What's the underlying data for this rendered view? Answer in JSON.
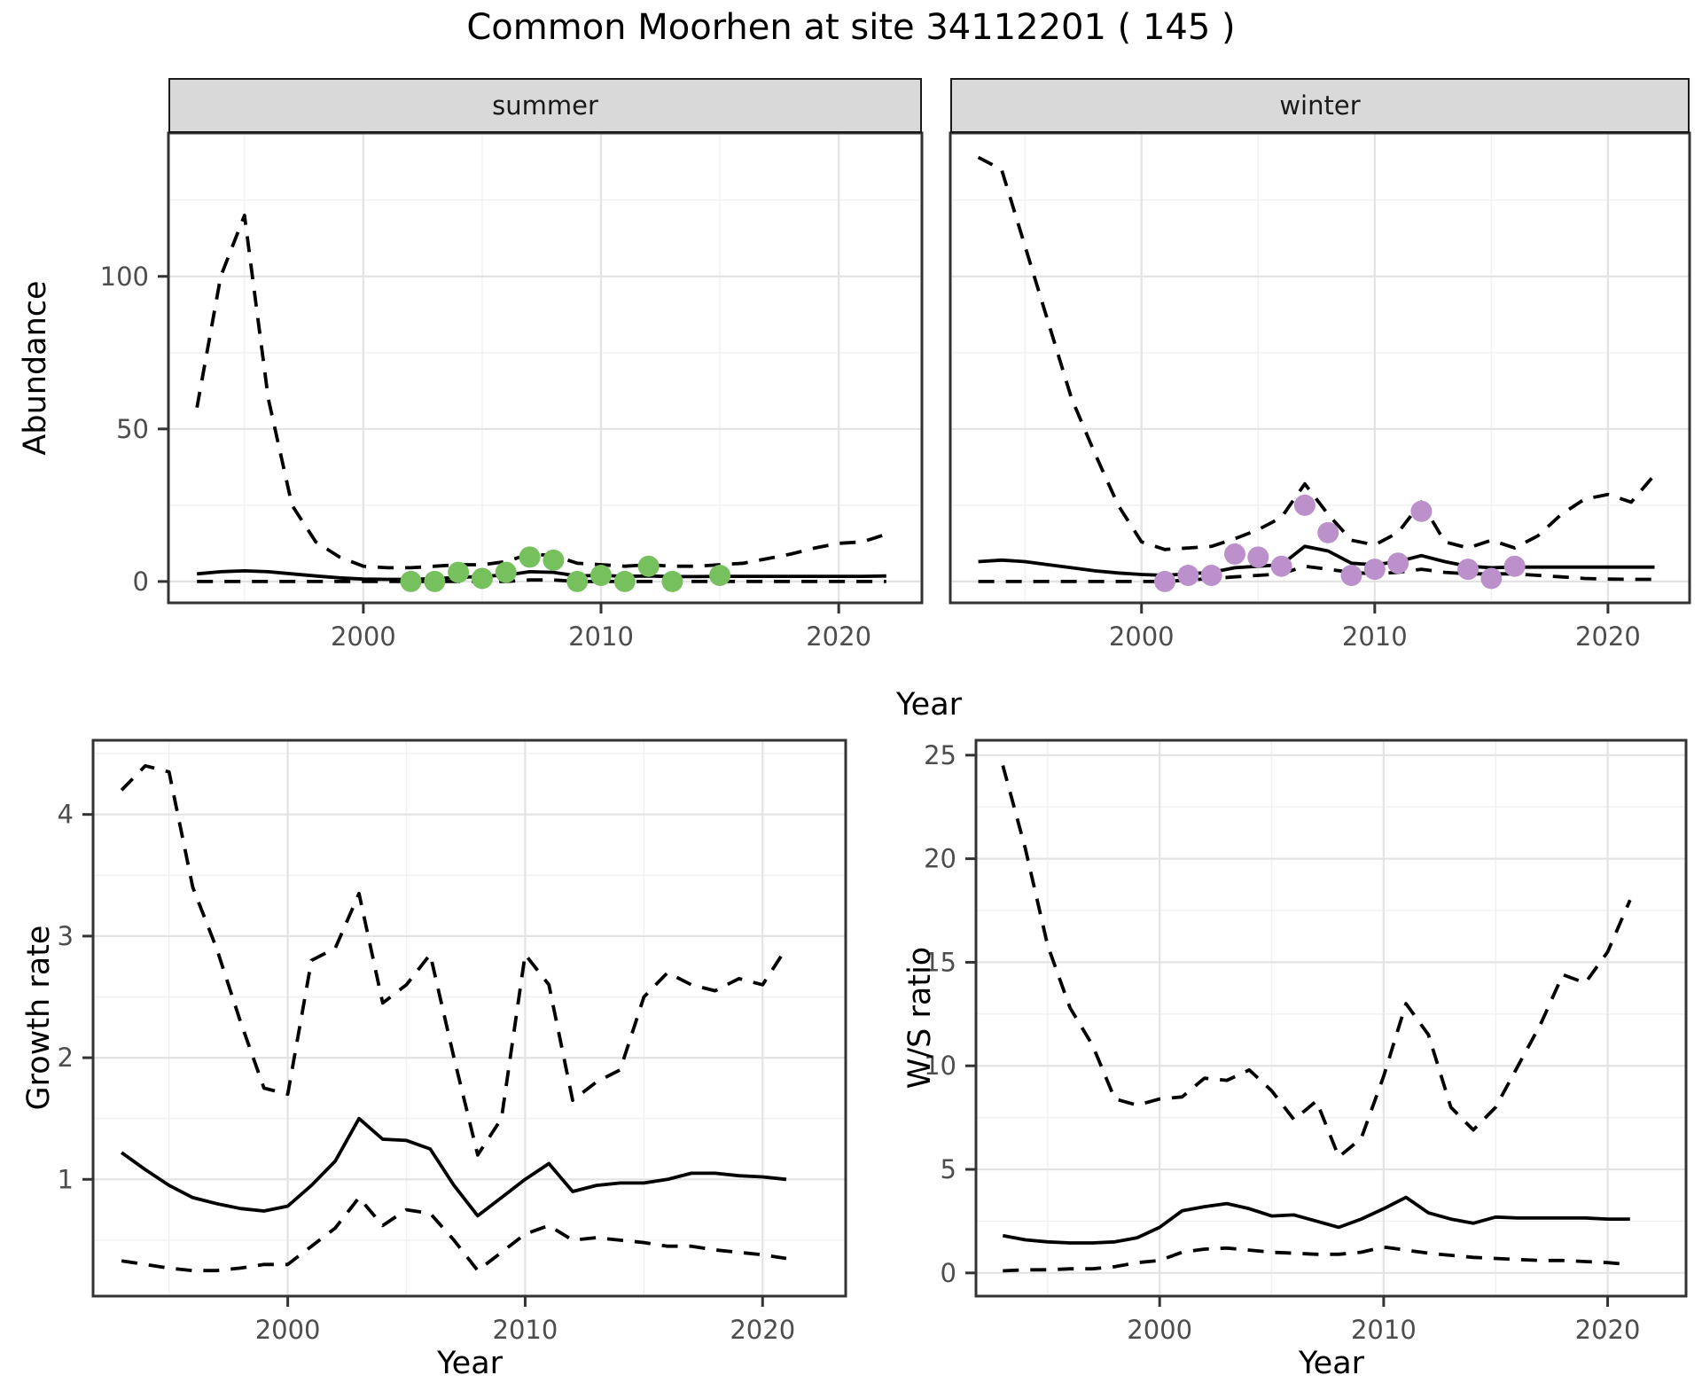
{
  "title": "Common Moorhen at site 34112201 ( 145 )",
  "labels": {
    "y_top": "Abundance",
    "x_top": "Year",
    "y_growth": "Growth rate",
    "x_growth": "Year",
    "y_ws": "W/S ratio",
    "x_ws": "Year"
  },
  "facets": [
    {
      "label": "summer"
    },
    {
      "label": "winter"
    }
  ],
  "colors": {
    "summer_point": "#76C05D",
    "winter_point": "#BB90CB",
    "line": "#000000",
    "strip_bg": "#d9d9d9",
    "panel_border": "#333333",
    "grid_major": "#e3e3e3",
    "grid_minor": "#f0f0f0",
    "tick_text": "#4d4d4d"
  },
  "chart_data": [
    {
      "id": "abundance-summer",
      "type": "line",
      "facet": "summer",
      "ylabel": "Abundance",
      "xlabel": "Year",
      "xlim": [
        1991.8,
        2023.5
      ],
      "ylim": [
        -7,
        147
      ],
      "x_ticks": [
        2000,
        2010,
        2020
      ],
      "x_tick_labels": [
        "2000",
        "2010",
        "2020"
      ],
      "x_minor": [
        1995,
        2005,
        2015
      ],
      "y_ticks": [
        0,
        50,
        100
      ],
      "y_tick_labels": [
        "0",
        "50",
        "100"
      ],
      "y_minor": [
        25,
        75,
        125
      ],
      "x": [
        1993,
        1994,
        1995,
        1996,
        1997,
        1998,
        1999,
        2000,
        2001,
        2002,
        2003,
        2004,
        2005,
        2006,
        2007,
        2008,
        2009,
        2010,
        2011,
        2012,
        2013,
        2014,
        2015,
        2016,
        2017,
        2018,
        2019,
        2020,
        2021,
        2022
      ],
      "series": [
        {
          "name": "median",
          "style": "solid",
          "values": [
            2.5,
            3.2,
            3.5,
            3.2,
            2.5,
            1.8,
            1.2,
            0.8,
            0.7,
            0.7,
            0.9,
            1.3,
            1.7,
            2.1,
            3.2,
            3.0,
            1.8,
            2.0,
            1.7,
            1.8,
            1.6,
            1.6,
            1.7,
            1.7,
            1.7,
            1.7,
            1.7,
            1.7,
            1.7,
            1.8
          ]
        },
        {
          "name": "upper_ci",
          "style": "dashed",
          "values": [
            57,
            100,
            120,
            60,
            25,
            13,
            8,
            5,
            4.5,
            4.5,
            5,
            5.5,
            5.5,
            6.5,
            9,
            8.5,
            6,
            5.5,
            5,
            5.5,
            5,
            5,
            5.5,
            6,
            7.5,
            9,
            11,
            12.5,
            13,
            15.5
          ]
        },
        {
          "name": "lower_ci",
          "style": "dashed",
          "values": [
            0,
            0,
            0,
            0,
            0,
            0,
            0,
            0,
            0,
            0,
            0,
            0,
            0,
            0,
            0.5,
            0.5,
            0,
            0,
            0,
            0,
            0,
            0,
            0,
            0,
            0,
            0,
            0,
            0,
            0,
            0
          ]
        }
      ],
      "points": {
        "color": "#76C05D",
        "x": [
          2002,
          2003,
          2004,
          2005,
          2006,
          2007,
          2008,
          2009,
          2010,
          2011,
          2012,
          2013,
          2015
        ],
        "y": [
          0,
          0,
          3,
          1,
          3,
          8,
          7,
          0,
          2,
          0,
          5,
          0,
          2
        ]
      }
    },
    {
      "id": "abundance-winter",
      "type": "line",
      "facet": "winter",
      "ylabel": "Abundance",
      "xlabel": "Year",
      "xlim": [
        1991.8,
        2023.5
      ],
      "ylim": [
        -7,
        147
      ],
      "x_ticks": [
        2000,
        2010,
        2020
      ],
      "x_tick_labels": [
        "2000",
        "2010",
        "2020"
      ],
      "x_minor": [
        1995,
        2005,
        2015
      ],
      "y_ticks": [
        0,
        50,
        100
      ],
      "y_tick_labels": [],
      "y_minor": [
        25,
        75,
        125
      ],
      "x": [
        1993,
        1994,
        1995,
        1996,
        1997,
        1998,
        1999,
        2000,
        2001,
        2002,
        2003,
        2004,
        2005,
        2006,
        2007,
        2008,
        2009,
        2010,
        2011,
        2012,
        2013,
        2014,
        2015,
        2016,
        2017,
        2018,
        2019,
        2020,
        2021,
        2022
      ],
      "series": [
        {
          "name": "median",
          "style": "solid",
          "values": [
            6.5,
            7,
            6.5,
            5.5,
            4.5,
            3.5,
            2.8,
            2.3,
            2,
            2.5,
            3,
            4.5,
            5,
            5.5,
            11.5,
            10,
            6,
            5.5,
            6.5,
            8.5,
            6.5,
            5,
            4.5,
            4.7,
            4.7,
            4.7,
            4.7,
            4.7,
            4.7,
            4.7
          ]
        },
        {
          "name": "upper_ci",
          "style": "dashed",
          "values": [
            139,
            135,
            110,
            85,
            60,
            42,
            25,
            13,
            10.5,
            11,
            11.5,
            14,
            17,
            21,
            32,
            22,
            13.5,
            12,
            16,
            26,
            13,
            11,
            13.5,
            11,
            15,
            22,
            27,
            28.5,
            26,
            35
          ]
        },
        {
          "name": "lower_ci",
          "style": "dashed",
          "values": [
            0,
            0,
            0,
            0,
            0,
            0,
            0,
            0,
            0,
            0.5,
            1,
            1.5,
            2,
            2.5,
            5,
            4,
            3,
            2.5,
            3,
            4,
            3,
            2.5,
            2.5,
            2.5,
            2,
            1.5,
            1,
            0.8,
            0.7,
            0.7
          ]
        }
      ],
      "points": {
        "color": "#BB90CB",
        "x": [
          2001,
          2002,
          2003,
          2004,
          2005,
          2006,
          2007,
          2008,
          2009,
          2010,
          2011,
          2012,
          2014,
          2015,
          2016
        ],
        "y": [
          0,
          2,
          2,
          9,
          8,
          5,
          25,
          16,
          2,
          4,
          6,
          23,
          4,
          1,
          5
        ]
      }
    },
    {
      "id": "growth-rate",
      "type": "line",
      "facet": null,
      "ylabel": "Growth rate",
      "xlabel": "Year",
      "xlim": [
        1991.8,
        2023.5
      ],
      "ylim": [
        0.04,
        4.61
      ],
      "x_ticks": [
        2000,
        2010,
        2020
      ],
      "x_tick_labels": [
        "2000",
        "2010",
        "2020"
      ],
      "x_minor": [
        1995,
        2005,
        2015
      ],
      "y_ticks": [
        1,
        2,
        3,
        4
      ],
      "y_tick_labels": [
        "1",
        "2",
        "3",
        "4"
      ],
      "y_minor": [
        0.5,
        1.5,
        2.5,
        3.5,
        4.5
      ],
      "x": [
        1993,
        1994,
        1995,
        1996,
        1997,
        1998,
        1999,
        2000,
        2001,
        2002,
        2003,
        2004,
        2005,
        2006,
        2007,
        2008,
        2009,
        2010,
        2011,
        2012,
        2013,
        2014,
        2015,
        2016,
        2017,
        2018,
        2019,
        2020,
        2021
      ],
      "series": [
        {
          "name": "median",
          "style": "solid",
          "values": [
            1.22,
            1.08,
            0.95,
            0.85,
            0.8,
            0.76,
            0.74,
            0.78,
            0.95,
            1.15,
            1.5,
            1.33,
            1.32,
            1.25,
            0.95,
            0.7,
            0.85,
            1.0,
            1.13,
            0.9,
            0.95,
            0.97,
            0.97,
            1.0,
            1.05,
            1.05,
            1.03,
            1.02,
            1.0
          ]
        },
        {
          "name": "upper_ci",
          "style": "dashed",
          "values": [
            4.2,
            4.4,
            4.35,
            3.4,
            2.9,
            2.3,
            1.75,
            1.7,
            2.8,
            2.9,
            3.35,
            2.45,
            2.6,
            2.85,
            2.0,
            1.2,
            1.5,
            2.85,
            2.6,
            1.65,
            1.8,
            1.9,
            2.5,
            2.7,
            2.6,
            2.55,
            2.65,
            2.6,
            2.9
          ]
        },
        {
          "name": "lower_ci",
          "style": "dashed",
          "values": [
            0.33,
            0.3,
            0.27,
            0.25,
            0.25,
            0.27,
            0.3,
            0.3,
            0.45,
            0.6,
            0.85,
            0.62,
            0.75,
            0.72,
            0.5,
            0.25,
            0.4,
            0.55,
            0.62,
            0.5,
            0.52,
            0.5,
            0.48,
            0.45,
            0.45,
            0.42,
            0.4,
            0.38,
            0.35
          ]
        }
      ],
      "points": null
    },
    {
      "id": "ws-ratio",
      "type": "line",
      "facet": null,
      "ylabel": "W/S ratio",
      "xlabel": "Year",
      "xlim": [
        1991.8,
        2023.5
      ],
      "ylim": [
        -1.12,
        25.72
      ],
      "x_ticks": [
        2000,
        2010,
        2020
      ],
      "x_tick_labels": [
        "2000",
        "2010",
        "2020"
      ],
      "x_minor": [
        1995,
        2005,
        2015
      ],
      "y_ticks": [
        0,
        5,
        10,
        15,
        20,
        25
      ],
      "y_tick_labels": [
        "0",
        "5",
        "10",
        "15",
        "20",
        "25"
      ],
      "y_minor": [
        2.5,
        7.5,
        12.5,
        17.5,
        22.5
      ],
      "x": [
        1993,
        1994,
        1995,
        1996,
        1997,
        1998,
        1999,
        2000,
        2001,
        2002,
        2003,
        2004,
        2005,
        2006,
        2007,
        2008,
        2009,
        2010,
        2011,
        2012,
        2013,
        2014,
        2015,
        2016,
        2017,
        2018,
        2019,
        2020,
        2021
      ],
      "series": [
        {
          "name": "median",
          "style": "solid",
          "values": [
            1.8,
            1.6,
            1.5,
            1.45,
            1.45,
            1.5,
            1.7,
            2.2,
            3.0,
            3.2,
            3.35,
            3.1,
            2.75,
            2.8,
            2.5,
            2.2,
            2.6,
            3.1,
            3.65,
            2.9,
            2.6,
            2.4,
            2.7,
            2.65,
            2.65,
            2.65,
            2.65,
            2.6,
            2.6
          ]
        },
        {
          "name": "upper_ci",
          "style": "dashed",
          "values": [
            24.5,
            20.5,
            15.8,
            12.8,
            11.0,
            8.4,
            8.1,
            8.4,
            8.5,
            9.4,
            9.3,
            9.8,
            8.8,
            7.4,
            8.3,
            5.6,
            6.5,
            9.5,
            13.0,
            11.5,
            8.0,
            6.9,
            8.0,
            10.0,
            12.0,
            14.4,
            14.0,
            15.5,
            18.0
          ]
        },
        {
          "name": "lower_ci",
          "style": "dashed",
          "values": [
            0.1,
            0.15,
            0.15,
            0.2,
            0.2,
            0.3,
            0.5,
            0.6,
            1.0,
            1.15,
            1.2,
            1.1,
            1.0,
            0.95,
            0.9,
            0.9,
            1.0,
            1.25,
            1.1,
            0.95,
            0.85,
            0.75,
            0.7,
            0.65,
            0.6,
            0.6,
            0.55,
            0.5,
            0.4
          ]
        }
      ],
      "points": null
    }
  ]
}
